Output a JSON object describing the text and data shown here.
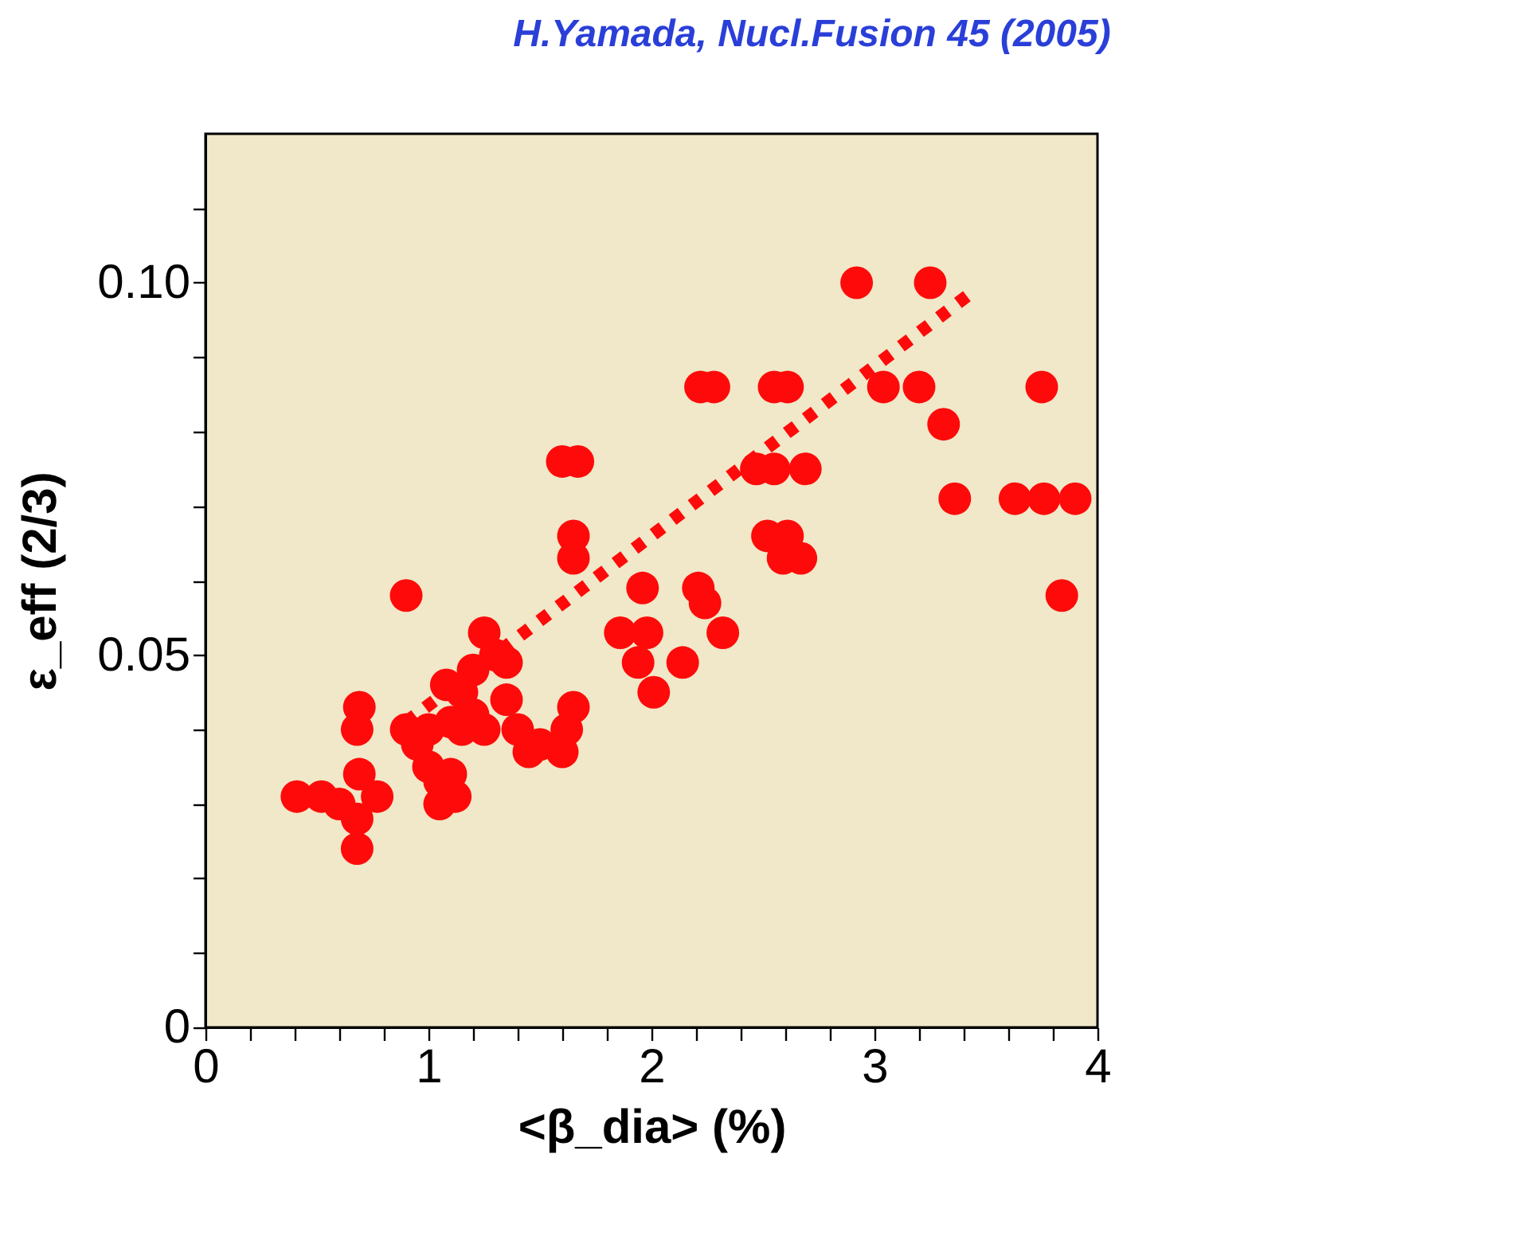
{
  "chart_data": {
    "type": "scatter",
    "xlabel": "<β_dia> (%)",
    "ylabel": "ε_eff (2/3)",
    "annotations": [
      "H.Yamada, Nucl.Fusion 45 (2005)"
    ],
    "xlim": [
      0,
      4
    ],
    "ylim": [
      0,
      0.12
    ],
    "xticks": [
      0,
      {
        "value": 0.2,
        "label": null
      },
      {
        "value": 0.4,
        "label": null
      },
      {
        "value": 0.6,
        "label": null
      },
      {
        "value": 0.8,
        "label": null
      },
      1,
      {
        "value": 1.2,
        "label": null
      },
      {
        "value": 1.4,
        "label": null
      },
      {
        "value": 1.6,
        "label": null
      },
      {
        "value": 1.8,
        "label": null
      },
      2,
      {
        "value": 2.2,
        "label": null
      },
      {
        "value": 2.4,
        "label": null
      },
      {
        "value": 2.6,
        "label": null
      },
      {
        "value": 2.8,
        "label": null
      },
      3,
      {
        "value": 3.2,
        "label": null
      },
      {
        "value": 3.4,
        "label": null
      },
      {
        "value": 3.6,
        "label": null
      },
      {
        "value": 3.8,
        "label": null
      },
      4
    ],
    "yticks": [
      0,
      {
        "value": 0.01,
        "label": null
      },
      {
        "value": 0.02,
        "label": null
      },
      {
        "value": 0.03,
        "label": null
      },
      {
        "value": 0.04,
        "label": null
      },
      0.05,
      {
        "value": 0.06,
        "label": null
      },
      {
        "value": 0.07,
        "label": null
      },
      {
        "value": 0.08,
        "label": null
      },
      {
        "value": 0.09,
        "label": null
      },
      {
        "value": 0.1,
        "label": "0.10"
      },
      {
        "value": 0.11,
        "label": null
      }
    ],
    "grid": false,
    "marker": "circle",
    "series": [
      {
        "color": "#ff0a0a",
        "x": [
          0.41,
          0.52,
          0.6,
          0.68,
          0.68,
          0.69,
          0.68,
          0.69,
          0.77,
          0.9,
          0.9,
          0.95,
          1.0,
          1.0,
          1.05,
          1.05,
          1.1,
          1.12,
          1.08,
          1.15,
          1.2,
          1.25,
          1.3,
          1.2,
          1.25,
          1.35,
          1.35,
          1.4,
          1.45,
          1.5,
          1.6,
          1.62,
          1.65,
          1.6,
          1.67,
          1.65,
          1.65,
          1.1,
          1.15,
          2.92,
          3.25,
          2.22,
          2.28,
          2.55,
          2.61,
          3.04,
          3.2,
          3.75,
          3.31,
          2.47,
          2.55,
          2.69,
          3.36,
          3.63,
          3.76,
          3.9,
          2.52,
          2.61,
          2.59,
          2.67,
          3.84,
          1.96,
          2.21,
          2.24,
          1.86,
          1.98,
          2.32,
          1.94,
          2.14,
          2.01
        ],
        "values": [
          0.031,
          0.031,
          0.03,
          0.024,
          0.028,
          0.034,
          0.04,
          0.043,
          0.031,
          0.058,
          0.04,
          0.038,
          0.04,
          0.035,
          0.033,
          0.03,
          0.034,
          0.031,
          0.046,
          0.045,
          0.048,
          0.053,
          0.05,
          0.042,
          0.04,
          0.044,
          0.049,
          0.04,
          0.037,
          0.038,
          0.037,
          0.04,
          0.043,
          0.076,
          0.076,
          0.066,
          0.063,
          0.041,
          0.04,
          0.1,
          0.1,
          0.086,
          0.086,
          0.086,
          0.086,
          0.086,
          0.086,
          0.086,
          0.081,
          0.075,
          0.075,
          0.075,
          0.071,
          0.071,
          0.071,
          0.071,
          0.066,
          0.066,
          0.063,
          0.063,
          0.058,
          0.059,
          0.059,
          0.057,
          0.053,
          0.053,
          0.053,
          0.049,
          0.049,
          0.045
        ]
      },
      {
        "type": "line",
        "color": "#ff0a0a",
        "line_style": "dotted",
        "marker": "none",
        "x": [
          0.9,
          3.45
        ],
        "values": [
          0.041,
          0.099
        ]
      }
    ]
  }
}
